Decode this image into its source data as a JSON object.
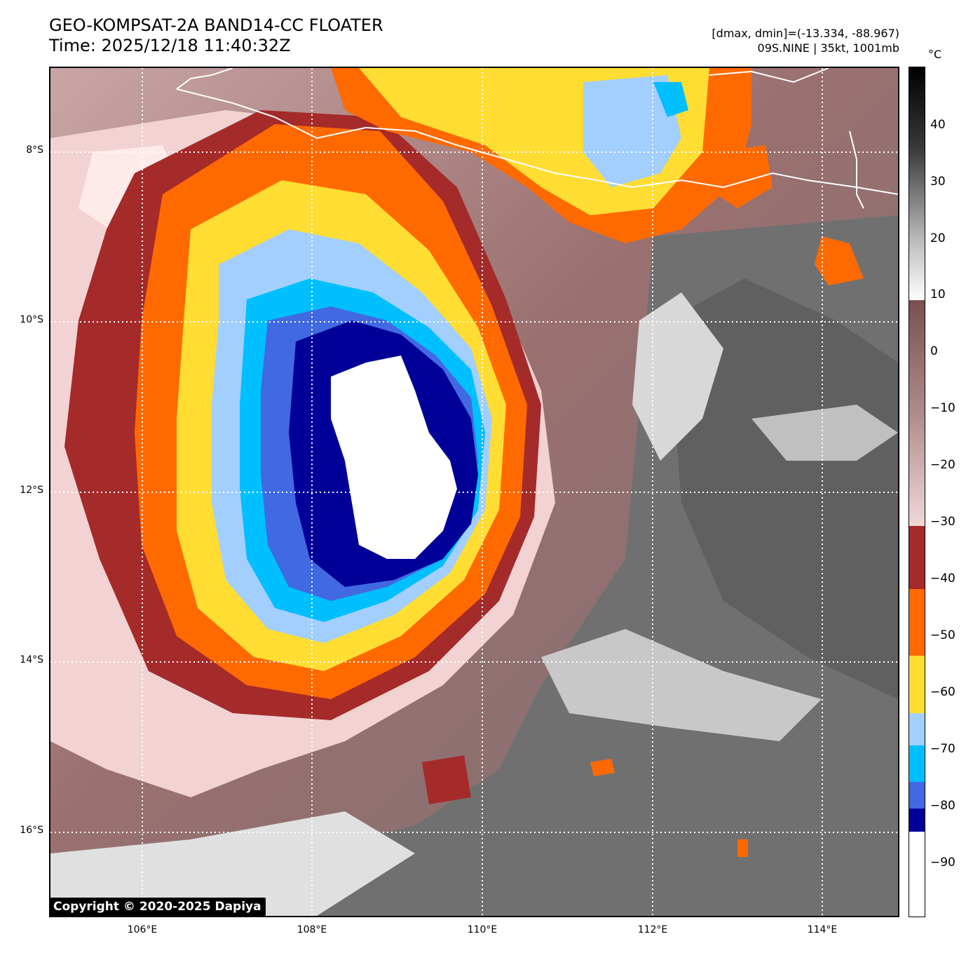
{
  "header": {
    "title_line1": "GEO-KOMPSAT-2A BAND14-CC FLOATER",
    "title_line2": "Time: 2025/12/18 11:40:32Z",
    "range_text": "[dmax, dmin]=(-13.334, -88.967)",
    "storm_text": "09S.NINE | 35kt, 1001mb"
  },
  "colorbar": {
    "unit": "°C",
    "ticks": [
      "40",
      "30",
      "20",
      "10",
      "0",
      "−10",
      "−20",
      "−30",
      "−40",
      "−50",
      "−60",
      "−70",
      "−80",
      "−90"
    ],
    "colors": {
      "white_top": "#ffffff",
      "dark_blue": "#000099",
      "royal_blue": "#4169e1",
      "deep_sky": "#00bfff",
      "light_blue": "#a3cfff",
      "yellow": "#ffdd33",
      "orange": "#ff6a00",
      "red_brown": "#a52a2a",
      "pink": "#f5d5d5",
      "mauve": "#8a5a5a",
      "gray": "#808080",
      "black": "#000000"
    }
  },
  "map": {
    "lat_labels": [
      "8°S",
      "10°S",
      "12°S",
      "14°S",
      "16°S"
    ],
    "lon_labels": [
      "106°E",
      "108°E",
      "110°E",
      "112°E",
      "114°E"
    ]
  },
  "copyright": "Copyright © 2020-2025 Dapiya"
}
